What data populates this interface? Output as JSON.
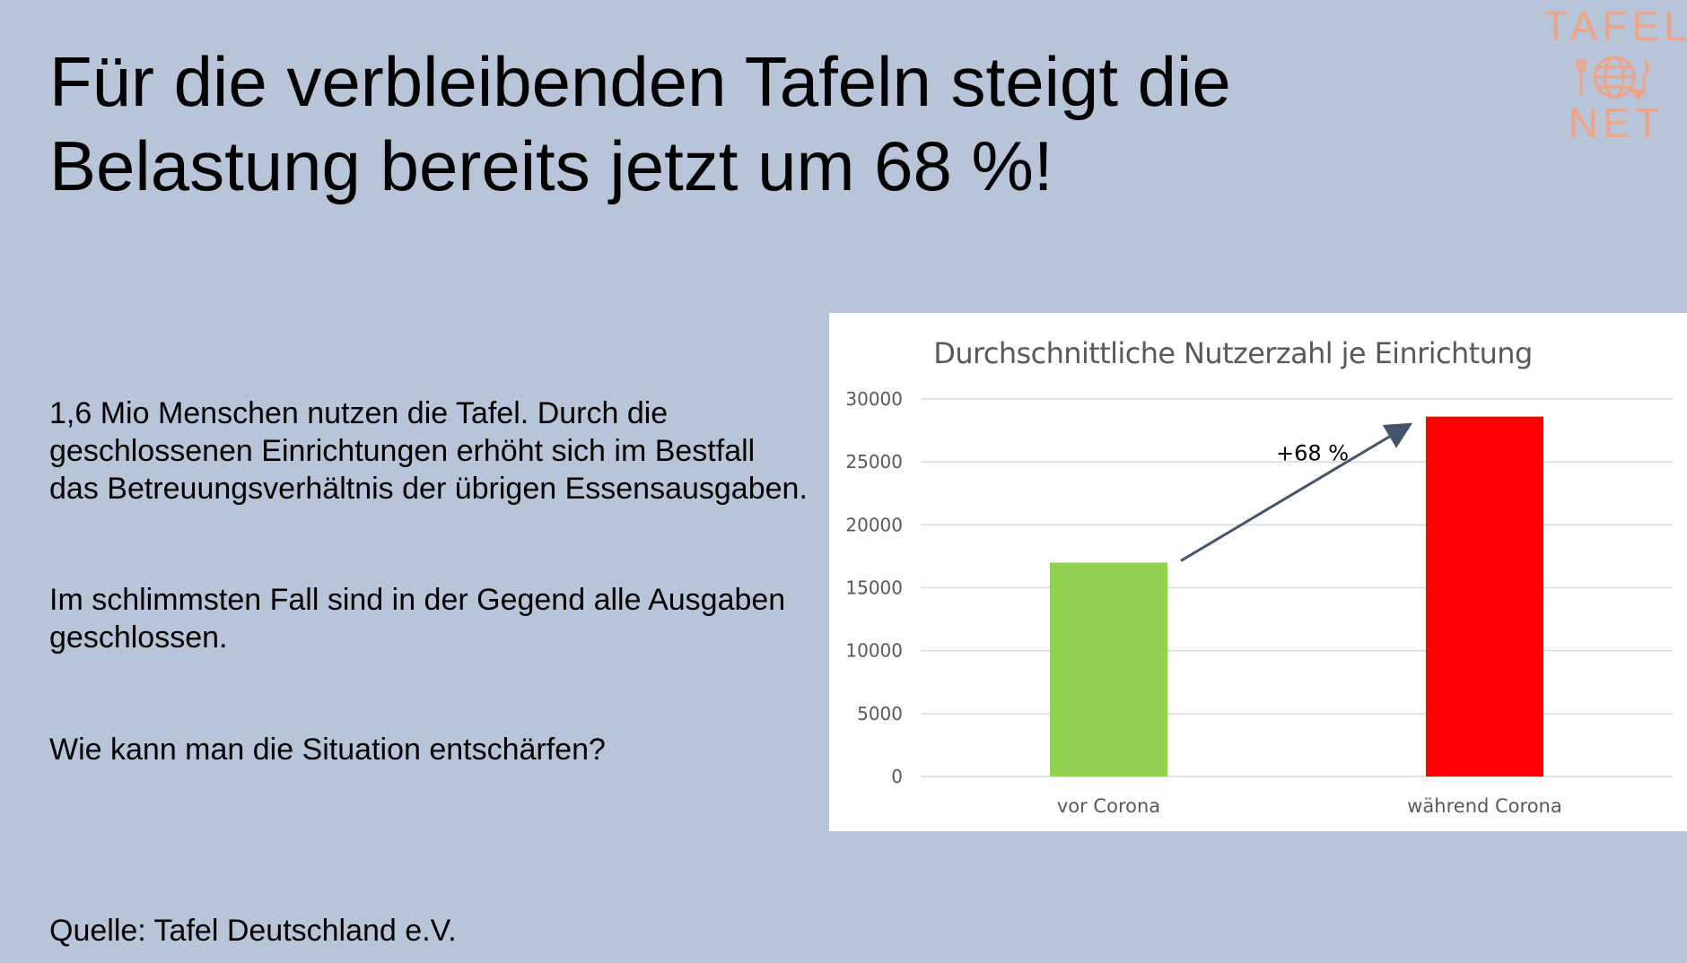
{
  "slide": {
    "title_line1": "Für die verbleibenden Tafeln steigt die",
    "title_line2": "Belastung bereits jetzt um 68 %!",
    "logo": {
      "top": "TAFEL",
      "bottom": "NET",
      "icon": "globe-cutlery-icon",
      "color": "#f0a487"
    },
    "paragraph1": "1,6 Mio Menschen nutzen die Tafel. Durch die geschlossenen Einrichtungen erhöht sich im Bestfall das Betreuungsverhältnis der übrigen Essensausgaben.",
    "paragraph2": "Im schlimmsten Fall sind in der Gegend alle Ausgaben geschlossen.",
    "question": "Wie kann man die Situation entschärfen?",
    "source": "Quelle: Tafel Deutschland e.V.",
    "background_color": "#b8c5d9"
  },
  "chart_data": {
    "type": "bar",
    "title": "Durchschnittliche Nutzerzahl je Einrichtung",
    "categories": [
      "vor Corona",
      "während Corona"
    ],
    "values": [
      17000,
      28600
    ],
    "colors": [
      "#92d050",
      "#ff0000"
    ],
    "ylim": [
      0,
      30000
    ],
    "yticks": [
      0,
      5000,
      10000,
      15000,
      20000,
      25000,
      30000
    ],
    "grid": true,
    "annotation": "+68 %",
    "xlabel": "",
    "ylabel": ""
  }
}
